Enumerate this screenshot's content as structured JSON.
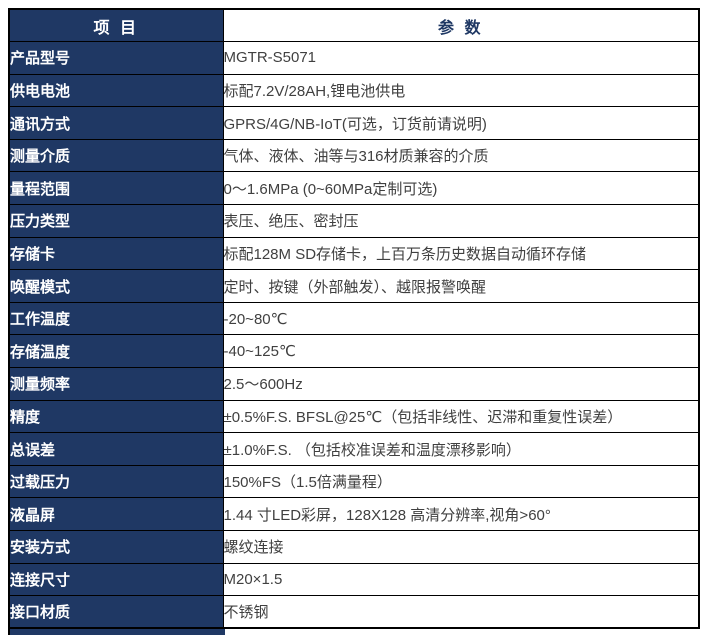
{
  "colors": {
    "navy": "#1f3864",
    "border": "#000000",
    "value_text": "#404040",
    "label_text": "#ffffff"
  },
  "table": {
    "header": {
      "item": "项 目",
      "param": "参 数"
    },
    "rows": [
      {
        "label": "产品型号",
        "value": "MGTR-S5071"
      },
      {
        "label": "供电电池",
        "value": "标配7.2V/28AH,锂电池供电"
      },
      {
        "label": "通讯方式",
        "value": "GPRS/4G/NB-IoT(可选，订货前请说明)"
      },
      {
        "label": "测量介质",
        "value": "气体、液体、油等与316材质兼容的介质"
      },
      {
        "label": "量程范围",
        "value": "0～1.6MPa (0~60MPa定制可选)"
      },
      {
        "label": "压力类型",
        "value": "表压、绝压、密封压"
      },
      {
        "label": "存储卡",
        "value": "标配128M SD存储卡，上百万条历史数据自动循环存储"
      },
      {
        "label": "唤醒模式",
        "value": "定时、按键（外部触发）、越限报警唤醒"
      },
      {
        "label": "工作温度",
        "value": "-20~80℃"
      },
      {
        "label": "存储温度",
        "value": "-40~125℃"
      },
      {
        "label": "测量频率",
        "value": "2.5～600Hz"
      },
      {
        "label": "精度",
        "value": "±0.5%F.S. BFSL@25℃（包括非线性、迟滞和重复性误差）"
      },
      {
        "label": "总误差",
        "value": "±1.0%F.S. （包括校准误差和温度漂移影响）"
      },
      {
        "label": "过载压力",
        "value": "150%FS（1.5倍满量程）"
      },
      {
        "label": "液晶屏",
        "value": "1.44 寸LED彩屏，128X128 高清分辨率,视角>60°"
      },
      {
        "label": "安装方式",
        "value": "螺纹连接"
      },
      {
        "label": "连接尺寸",
        "value": "M20×1.5"
      },
      {
        "label": "接口材质",
        "value": "不锈钢"
      }
    ]
  }
}
